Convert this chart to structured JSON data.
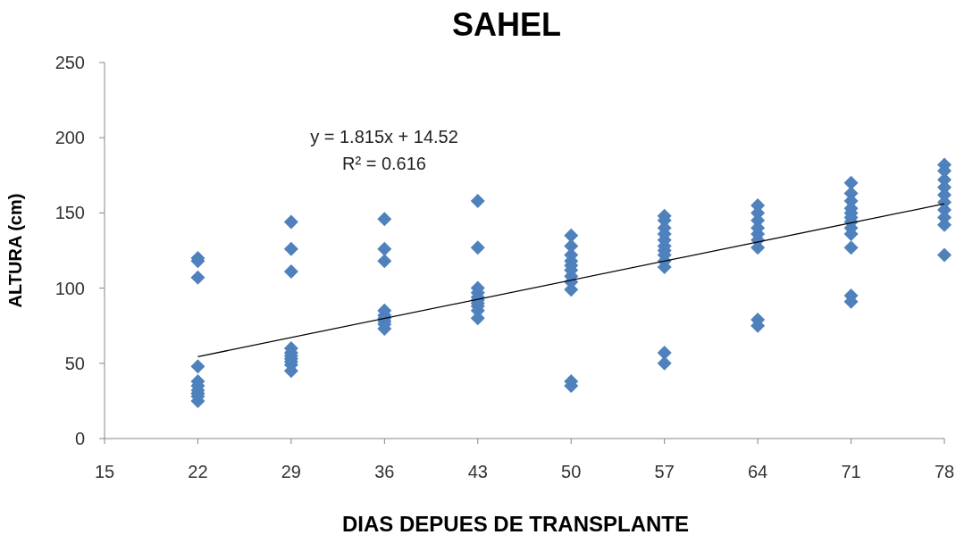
{
  "chart_data": {
    "type": "scatter",
    "title": "SAHEL",
    "xlabel": "DIAS DEPUES DE TRANSPLANTE",
    "ylabel": "ALTURA (cm)",
    "marker": "diamond",
    "xlim": [
      15,
      78
    ],
    "xticks": [
      15,
      22,
      29,
      36,
      43,
      50,
      57,
      64,
      71,
      78
    ],
    "ylim": [
      0,
      250
    ],
    "yticks": [
      0,
      50,
      100,
      150,
      200,
      250
    ],
    "annotations": [
      "y = 1.815x + 14.52",
      "R² = 0.616"
    ],
    "series": [
      {
        "color": "#4f81bd",
        "x": [
          22,
          22,
          22,
          22,
          22,
          22,
          22,
          22,
          22,
          22,
          29,
          29,
          29,
          29,
          29,
          29,
          29,
          29,
          29,
          29,
          36,
          36,
          36,
          36,
          36,
          36,
          36,
          36,
          36,
          43,
          43,
          43,
          43,
          43,
          43,
          43,
          43,
          43,
          43,
          50,
          50,
          50,
          50,
          50,
          50,
          50,
          50,
          50,
          50,
          50,
          57,
          57,
          57,
          57,
          57,
          57,
          57,
          57,
          57,
          57,
          57,
          57,
          64,
          64,
          64,
          64,
          64,
          64,
          64,
          64,
          64,
          71,
          71,
          71,
          71,
          71,
          71,
          71,
          71,
          71,
          71,
          71,
          71,
          78,
          78,
          78,
          78,
          78,
          78,
          78,
          78,
          78,
          78
        ],
        "values": [
          120,
          118,
          107,
          48,
          38,
          35,
          32,
          30,
          28,
          25,
          144,
          126,
          111,
          60,
          57,
          55,
          53,
          51,
          49,
          45,
          146,
          126,
          118,
          85,
          82,
          80,
          78,
          76,
          73,
          158,
          127,
          100,
          97,
          94,
          92,
          90,
          88,
          85,
          80,
          135,
          128,
          122,
          118,
          115,
          112,
          108,
          104,
          99,
          38,
          35,
          148,
          145,
          140,
          136,
          132,
          128,
          125,
          122,
          118,
          114,
          57,
          50,
          155,
          150,
          145,
          140,
          136,
          132,
          127,
          79,
          75,
          170,
          163,
          158,
          153,
          150,
          147,
          144,
          140,
          136,
          127,
          95,
          91,
          182,
          178,
          172,
          167,
          162,
          157,
          152,
          147,
          142,
          122
        ]
      },
      {
        "type": "line",
        "color": "#000000",
        "marker": "none",
        "x": [
          22,
          78
        ],
        "values": [
          54.45,
          156.09
        ]
      }
    ]
  }
}
